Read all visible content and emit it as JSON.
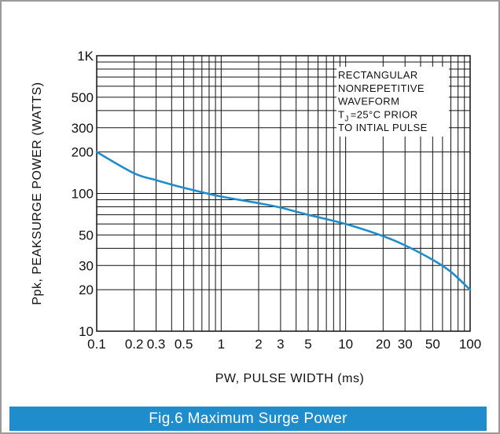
{
  "chart_data": {
    "type": "line",
    "title": "Fig.6 Maximum Surge Power",
    "xlabel": "PW, PULSE WIDTH (ms)",
    "ylabel": "Ppk, PEAKSURGE POWER (WATTS)",
    "x_scale": "log",
    "y_scale": "log",
    "xlim": [
      0.1,
      100
    ],
    "ylim": [
      10,
      1000
    ],
    "grid": true,
    "x_ticks": [
      {
        "v": 0.1,
        "label": "0.1"
      },
      {
        "v": 0.2,
        "label": "0.2"
      },
      {
        "v": 0.3,
        "label": "0.3"
      },
      {
        "v": 0.5,
        "label": "0.5"
      },
      {
        "v": 1,
        "label": "1"
      },
      {
        "v": 2,
        "label": "2"
      },
      {
        "v": 3,
        "label": "3"
      },
      {
        "v": 5,
        "label": "5"
      },
      {
        "v": 10,
        "label": "10"
      },
      {
        "v": 20,
        "label": "20"
      },
      {
        "v": 30,
        "label": "30"
      },
      {
        "v": 50,
        "label": "50"
      },
      {
        "v": 100,
        "label": "100"
      }
    ],
    "y_ticks": [
      {
        "v": 10,
        "label": "10"
      },
      {
        "v": 20,
        "label": "20"
      },
      {
        "v": 30,
        "label": "30"
      },
      {
        "v": 50,
        "label": "50"
      },
      {
        "v": 100,
        "label": "100"
      },
      {
        "v": 200,
        "label": "200"
      },
      {
        "v": 300,
        "label": "300"
      },
      {
        "v": 500,
        "label": "500"
      },
      {
        "v": 1000,
        "label": "1K"
      }
    ],
    "series": [
      {
        "color": "#1f8ccc",
        "x": [
          0.1,
          0.2,
          0.3,
          0.5,
          1,
          2,
          3,
          5,
          10,
          20,
          30,
          50,
          70,
          100
        ],
        "y": [
          200,
          140,
          125,
          110,
          95,
          85,
          79,
          70,
          60,
          49,
          42,
          33,
          27,
          20
        ]
      }
    ],
    "annotation": {
      "lines": [
        "RECTANGULAR",
        "NONREPETITIVE",
        "WAVEFORM",
        "=25°C PRIOR",
        "TO INTIAL PULSE"
      ],
      "tj_symbol": "T",
      "tj_subscript": "J"
    }
  }
}
